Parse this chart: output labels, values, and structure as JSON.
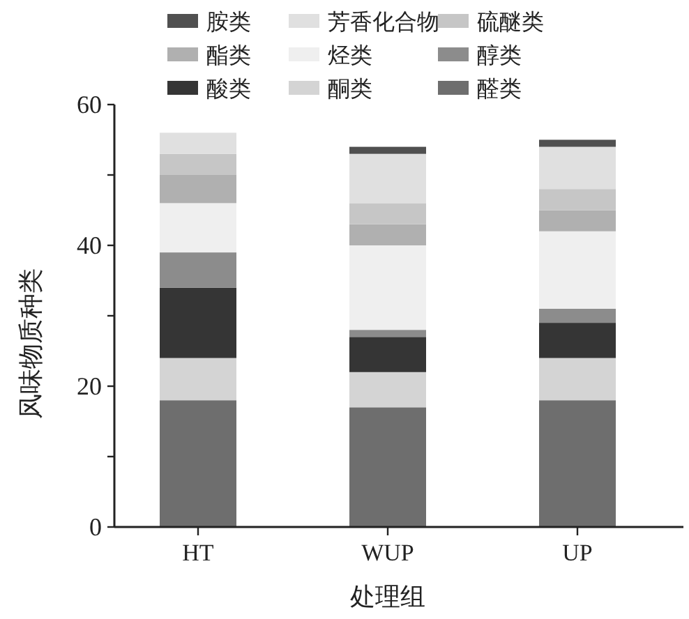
{
  "chart_data": {
    "type": "bar",
    "stacked": true,
    "xlabel": "处理组",
    "ylabel": "风味物质种类",
    "categories": [
      "HT",
      "WUP",
      "UP"
    ],
    "ylim": [
      0,
      60
    ],
    "yticks": [
      0,
      {
        "value": 10,
        "label": null
      },
      20,
      {
        "value": 30,
        "label": null
      },
      40,
      {
        "value": 50,
        "label": null
      },
      60
    ],
    "legend": "top",
    "series": [
      {
        "name": "醛类",
        "color": "#6e6e6e",
        "values": [
          18,
          17,
          18
        ]
      },
      {
        "name": "酮类",
        "color": "#d4d4d4",
        "values": [
          6,
          5,
          6
        ]
      },
      {
        "name": "酸类",
        "color": "#353535",
        "values": [
          10,
          5,
          5
        ]
      },
      {
        "name": "醇类",
        "color": "#8c8c8c",
        "values": [
          5,
          1,
          2
        ]
      },
      {
        "name": "烃类",
        "color": "#efefef",
        "values": [
          7,
          12,
          11
        ]
      },
      {
        "name": "酯类",
        "color": "#b0b0b0",
        "values": [
          4,
          3,
          3
        ]
      },
      {
        "name": "硫醚类",
        "color": "#c6c6c6",
        "values": [
          3,
          3,
          3
        ]
      },
      {
        "name": "芳香化合物",
        "color": "#e0e0e0",
        "values": [
          3,
          7,
          6
        ]
      },
      {
        "name": "胺类",
        "color": "#505050",
        "values": [
          0,
          1,
          1
        ]
      }
    ]
  }
}
